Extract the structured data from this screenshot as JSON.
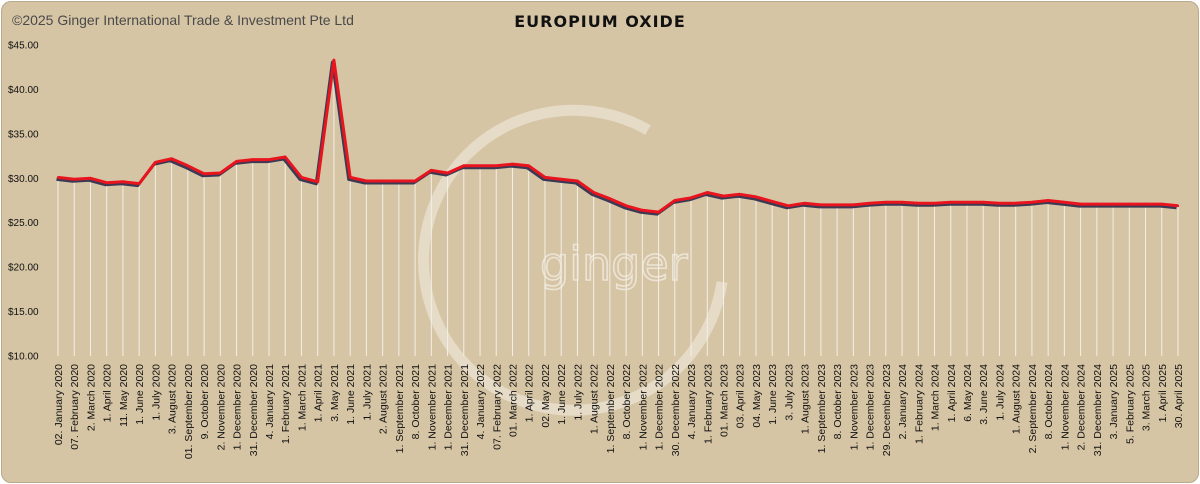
{
  "header": {
    "copyright": "©2025 Ginger International Trade & Investment Pte Ltd"
  },
  "watermark": {
    "text": "ginger"
  },
  "colors": {
    "background": "#d6c5a5",
    "line": "#e8141e",
    "shadow": "#3a3a55",
    "drop": "#f4efe6"
  },
  "chart_data": {
    "type": "line",
    "title": "EUROPIUM OXIDE",
    "xlabel": "",
    "ylabel": "",
    "ylim": [
      10,
      45
    ],
    "yticks": [
      "$10.00",
      "$15.00",
      "$20.00",
      "$25.00",
      "$30.00",
      "$35.00",
      "$40.00",
      "$45.00"
    ],
    "grid": false,
    "legend": "none",
    "categories": [
      "02. January 2020",
      "07. February 2020",
      "2. March 2020",
      "1. April 2020",
      "11. May 2020",
      "1. June 2020",
      "1. July 2020",
      "3. August 2020",
      "01. September 2020",
      "9. October 2020",
      "2. November 2020",
      "1. December 2020",
      "31. December 2020",
      "4. January 2021",
      "1. February 2021",
      "1. March 2021",
      "1. April 2021",
      "3. May 2021",
      "1. June 2021",
      "1. July 2021",
      "2. August 2021",
      "1. September 2021",
      "8. October 2021",
      "1. November 2021",
      "1. December 2021",
      "31. December 2021",
      "4. January 2022",
      "07. February 2022",
      "01. March 2022",
      "1. April 2022",
      "02. May 2022",
      "1. June 2022",
      "1. July 2022",
      "1. August 2022",
      "1. September 2022",
      "8. October 2022",
      "1. November 2022",
      "1. December 2022",
      "30. December 2022",
      "4. January 2023",
      "1. February 2023",
      "01. March 2023",
      "03. April 2023",
      "04. May 2023",
      "1. June 2023",
      "3. July 2023",
      "1. August 2023",
      "1. September 2023",
      "8. October 2023",
      "1. November 2023",
      "1. December 2023",
      "29. December 2023",
      "2. January 2024",
      "1. February 2024",
      "1. March 2024",
      "1. April 2024",
      "6. May 2024",
      "3. June 2024",
      "1. July 2024",
      "1. August 2024",
      "2. September 2024",
      "8. October 2024",
      "1. November 2024",
      "2. December 2024",
      "31. December 2024",
      "3. January 2025",
      "5. February 2025",
      "3. March 2025",
      "1. April 2025",
      "30. April 2025"
    ],
    "series": [
      {
        "values": [
          30.1,
          29.9,
          30.0,
          29.5,
          29.6,
          29.4,
          31.8,
          32.2,
          31.4,
          30.5,
          30.6,
          31.9,
          32.1,
          32.1,
          32.4,
          30.1,
          29.6,
          43.3,
          30.1,
          29.7,
          29.7,
          29.7,
          29.7,
          30.9,
          30.6,
          31.4,
          31.4,
          31.4,
          31.6,
          31.4,
          30.1,
          29.9,
          29.7,
          28.4,
          27.7,
          26.9,
          26.4,
          26.2,
          27.5,
          27.8,
          28.4,
          28.0,
          28.2,
          27.9,
          27.4,
          26.9,
          27.2,
          27.0,
          27.0,
          27.0,
          27.2,
          27.3,
          27.3,
          27.2,
          27.2,
          27.3,
          27.3,
          27.3,
          27.2,
          27.2,
          27.3,
          27.5,
          27.3,
          27.1,
          27.1,
          27.1,
          27.1,
          27.1,
          27.1,
          26.9
        ]
      }
    ]
  }
}
